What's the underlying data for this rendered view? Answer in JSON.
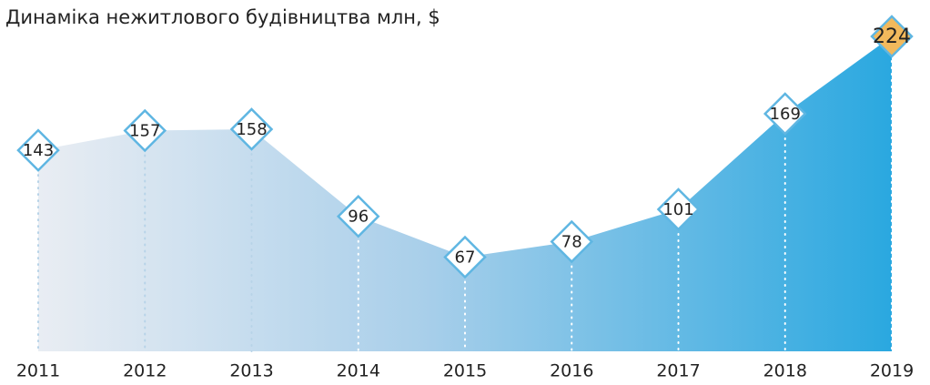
{
  "chart_data": {
    "type": "area",
    "title": "Динаміка  нежитлового будівництва млн, $",
    "categories": [
      "2011",
      "2012",
      "2013",
      "2014",
      "2015",
      "2016",
      "2017",
      "2018",
      "2019"
    ],
    "values": [
      143,
      157,
      158,
      96,
      67,
      78,
      101,
      169,
      224
    ],
    "color": "#2aa8e0",
    "marker_colors": [
      "#ffffff",
      "#ffffff",
      "#ffffff",
      "#ffffff",
      "#ffffff",
      "#ffffff",
      "#ffffff",
      "#ffffff",
      "#f2b95c"
    ]
  }
}
